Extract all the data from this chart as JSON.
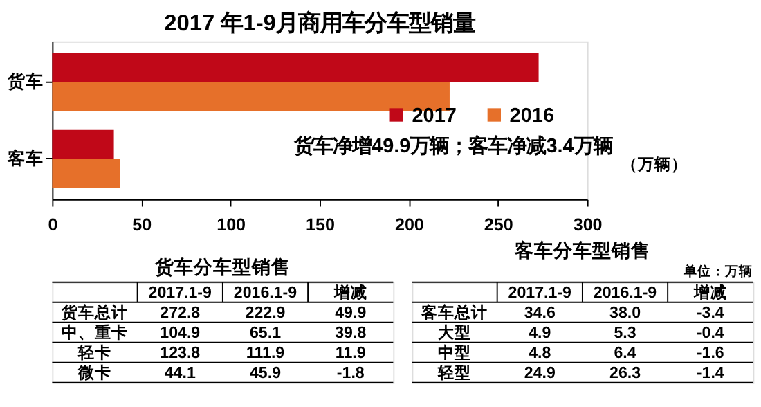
{
  "chart_data": [
    {
      "type": "bar",
      "orientation": "horizontal",
      "title": "2017 年1-9月商用车分车型销量",
      "categories": [
        "货车",
        "客车"
      ],
      "series": [
        {
          "name": "2017",
          "color": "#c00818",
          "values": [
            272.8,
            34.6
          ]
        },
        {
          "name": "2016",
          "color": "#e6702a",
          "values": [
            222.9,
            38.0
          ]
        }
      ],
      "xlim": [
        0,
        300
      ],
      "xticks": [
        0,
        50,
        100,
        150,
        200,
        250,
        300
      ],
      "grid": false,
      "legend": "right",
      "annotations": [
        "货车净增49.9万辆；客车净减3.4万辆",
        "（万辆）"
      ]
    },
    {
      "type": "other",
      "title": "货车分车型销售",
      "categories": [
        null,
        "2017.1-9",
        "2016.1-9",
        "增减"
      ],
      "y_categories": [
        "货车总计",
        "中、重卡",
        "轻卡",
        "微卡"
      ],
      "cell_labels": [
        [
          "272.8",
          "222.9",
          "49.9"
        ],
        [
          "104.9",
          "65.1",
          "39.8"
        ],
        [
          "123.8",
          "111.9",
          "11.9"
        ],
        [
          "44.1",
          "45.9",
          "-1.8"
        ]
      ]
    },
    {
      "type": "other",
      "title": "客车分车型销售",
      "categories": [
        null,
        "2017.1-9",
        "2016.1-9",
        "增减"
      ],
      "y_categories": [
        "客车总计",
        "大型",
        "中型",
        "轻型"
      ],
      "cell_labels": [
        [
          "34.6",
          "38.0",
          "-3.4"
        ],
        [
          "4.9",
          "5.3",
          "-0.4"
        ],
        [
          "4.8",
          "6.4",
          "-1.6"
        ],
        [
          "24.9",
          "26.3",
          "-1.4"
        ]
      ],
      "annotations": [
        "单位：万辆"
      ]
    }
  ]
}
